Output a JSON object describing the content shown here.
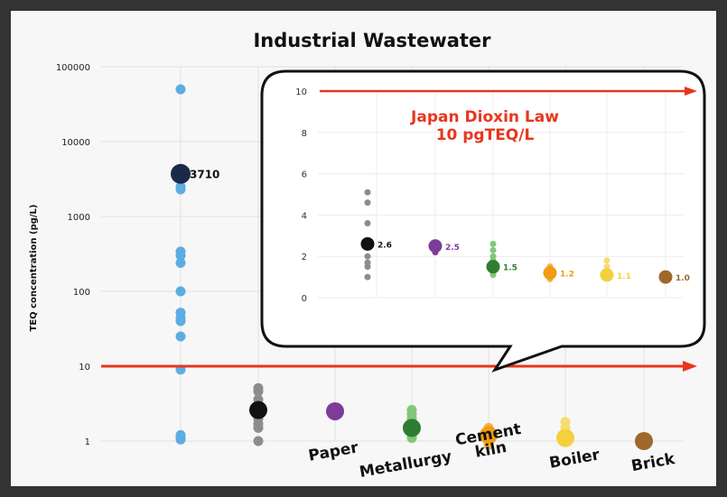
{
  "chart_data": {
    "type": "scatter",
    "title": "Industrial Wastewater",
    "ylabel": "TEQ concentration (pg/L)",
    "yscale": "log",
    "ylim": [
      1,
      100000
    ],
    "ticks": [
      "100000",
      "10000",
      "1000",
      "100",
      "10",
      "1"
    ],
    "categories": [
      "",
      "",
      "Paper",
      "Metallurgy",
      "Cement kiln",
      "Boiler",
      "Brick"
    ],
    "series": [
      {
        "color": "#5dade2",
        "mean_color": "#1b2a4a",
        "mean": 3710,
        "mean_label": "3710",
        "points": [
          50000,
          2500,
          2300,
          340,
          300,
          240,
          100,
          52,
          44,
          40,
          25,
          9,
          1.2,
          1.1,
          1.05
        ]
      },
      {
        "color": "#8c8c8c",
        "mean_color": "#111111",
        "mean": 2.6,
        "mean_label": "2.6",
        "points": [
          5.1,
          4.6,
          3.6,
          2.0,
          1.7,
          1.5,
          1.0
        ]
      },
      {
        "color": "#7d3c98",
        "mean_color": "#7d3c98",
        "mean": 2.5,
        "mean_label": "2.5",
        "points": [
          2.6,
          2.4,
          2.2
        ]
      },
      {
        "color": "#82c77a",
        "mean_color": "#2e7d32",
        "mean": 1.5,
        "mean_label": "1.5",
        "points": [
          2.6,
          2.3,
          2.0,
          1.8,
          1.3,
          1.2,
          1.1
        ]
      },
      {
        "color": "#f6b042",
        "mean_color": "#f39c12",
        "mean": 1.2,
        "mean_label": "1.2",
        "points": [
          1.5,
          1.4,
          1.0,
          0.9
        ]
      },
      {
        "color": "#f7dc6f",
        "mean_color": "#f4d03f",
        "mean": 1.1,
        "mean_label": "1.1",
        "points": [
          1.8,
          1.5,
          1.2
        ]
      },
      {
        "color": "#a0672a",
        "mean_color": "#a0672a",
        "mean": 1.0,
        "mean_label": "1.0",
        "points": []
      }
    ],
    "reference_line": {
      "value": 10,
      "color": "#e8361f"
    },
    "inset": {
      "ylim": [
        0,
        10
      ],
      "ticks": [
        "10",
        "8",
        "6",
        "4",
        "2",
        "0"
      ],
      "annotation_line1": "Japan Dioxin Law",
      "annotation_line2": "10 pgTEQ/L",
      "annotation_color": "#e8361f"
    }
  }
}
